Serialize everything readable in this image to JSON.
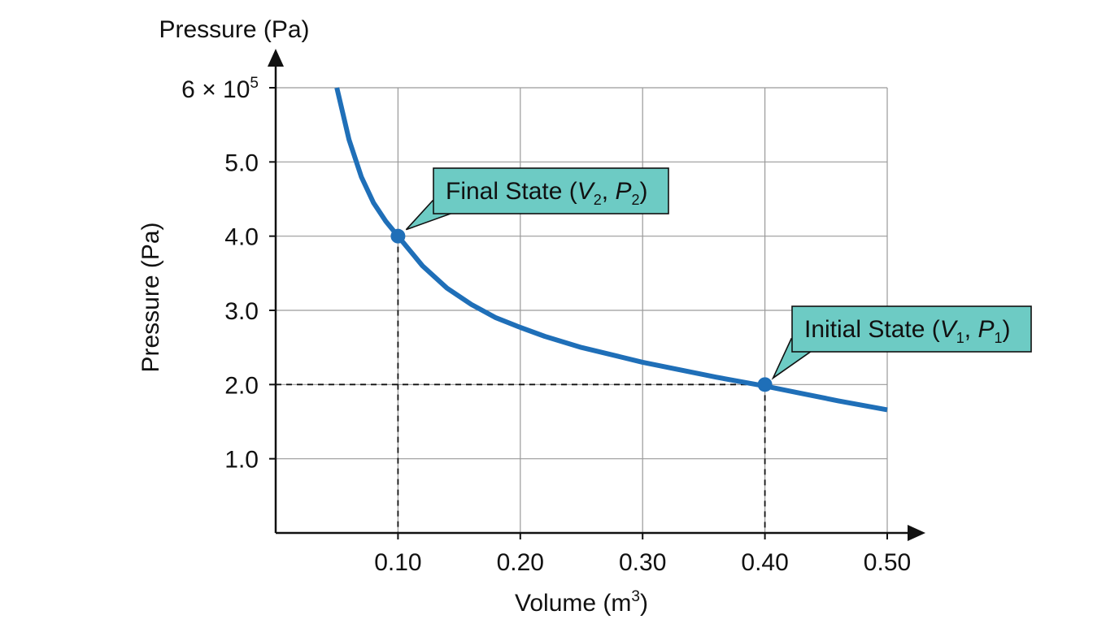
{
  "chart_data": {
    "type": "line",
    "title": "",
    "top_axis_label": "Pressure (Pa)",
    "xlabel_main": "Volume (m",
    "xlabel_sup": "3",
    "xlabel_close": ")",
    "ylabel": "Pressure (Pa)",
    "xlim": [
      0,
      0.5
    ],
    "ylim": [
      0,
      6
    ],
    "x_ticks": [
      0.1,
      0.2,
      0.3,
      0.4,
      0.5
    ],
    "x_tick_labels": [
      "0.10",
      "0.20",
      "0.30",
      "0.40",
      "0.50"
    ],
    "y_ticks": [
      1,
      2,
      3,
      4,
      5,
      6
    ],
    "y_tick_labels": [
      "1.0",
      "2.0",
      "3.0",
      "4.0",
      "5.0",
      ""
    ],
    "y_top_tick_label": {
      "base": "6 × 10",
      "exp": "5"
    },
    "grid": true,
    "series": [
      {
        "color": "#1f6fb8",
        "x": [
          0.05,
          0.06,
          0.07,
          0.08,
          0.09,
          0.1,
          0.12,
          0.14,
          0.16,
          0.18,
          0.2,
          0.22,
          0.25,
          0.28,
          0.3,
          0.33,
          0.36,
          0.4,
          0.43,
          0.46,
          0.5
        ],
        "y": [
          6.0,
          5.3,
          4.8,
          4.45,
          4.2,
          4.0,
          3.6,
          3.3,
          3.08,
          2.9,
          2.77,
          2.65,
          2.5,
          2.38,
          2.3,
          2.2,
          2.1,
          1.98,
          1.88,
          1.78,
          1.66
        ]
      }
    ],
    "points": [
      {
        "name": "Final State",
        "x": 0.1,
        "y": 4.0,
        "label_prefix": "Final State (",
        "v": "V",
        "v_sub": "2",
        "sep": ", ",
        "p": "P",
        "p_sub": "2",
        "label_suffix": ")"
      },
      {
        "name": "Initial State",
        "x": 0.4,
        "y": 2.0,
        "label_prefix": "Initial State (",
        "v": "V",
        "v_sub": "1",
        "sep": ", ",
        "p": "P",
        "p_sub": "1",
        "label_suffix": ")"
      }
    ],
    "callout_color": "#6dcbc4",
    "point_color": "#1f6fb8"
  }
}
